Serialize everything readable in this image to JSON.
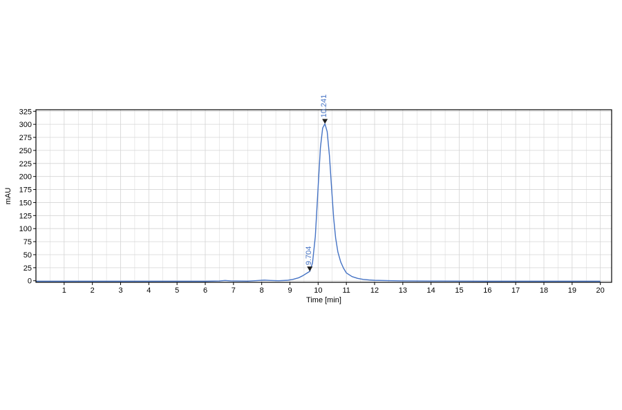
{
  "chart_data": {
    "type": "line",
    "xlabel": "Time [min]",
    "ylabel": "mAU",
    "xlim": [
      0,
      20.4
    ],
    "ylim": [
      -3,
      328
    ],
    "x_ticks": [
      1,
      2,
      3,
      4,
      5,
      6,
      7,
      8,
      9,
      10,
      11,
      12,
      13,
      14,
      15,
      16,
      17,
      18,
      19,
      20
    ],
    "y_ticks": [
      0,
      25,
      50,
      75,
      100,
      125,
      150,
      175,
      200,
      225,
      250,
      275,
      300,
      325
    ],
    "grid": true,
    "colors": {
      "trace": "#4472c4",
      "grid": "#d4d4d4",
      "axis": "#000000",
      "marker": "#1f1f1f"
    },
    "series": [
      {
        "x": [
          0.0,
          1.0,
          2.0,
          3.0,
          4.0,
          5.0,
          6.0,
          6.5,
          6.7,
          6.9,
          7.5,
          7.9,
          8.1,
          8.3,
          8.6,
          8.9,
          9.1,
          9.3,
          9.45,
          9.6,
          9.704,
          9.8,
          9.9,
          10.0,
          10.08,
          10.16,
          10.241,
          10.32,
          10.4,
          10.48,
          10.55,
          10.62,
          10.7,
          10.8,
          10.9,
          11.0,
          11.2,
          11.4,
          11.6,
          11.8,
          12.0,
          12.5,
          13.0,
          13.5,
          14.0,
          15.0,
          16.0,
          17.0,
          18.0,
          19.0,
          20.0
        ],
        "y": [
          -1,
          -1,
          -1,
          -1,
          -1,
          -1,
          -1,
          -0.5,
          0.6,
          -0.3,
          -0.8,
          0.5,
          1.2,
          0.6,
          0.0,
          0.8,
          2.5,
          5.5,
          9.5,
          14.5,
          18,
          34,
          85,
          180,
          255,
          293,
          301,
          286,
          240,
          175,
          120,
          82,
          55,
          36,
          24,
          15,
          8,
          4.5,
          2.5,
          1.5,
          0.8,
          0.2,
          -0.2,
          -0.5,
          -0.6,
          -0.8,
          -1,
          -1,
          -1,
          -1,
          -1
        ]
      }
    ],
    "annotations": [
      {
        "x": 9.704,
        "y": 18,
        "label": "9.704"
      },
      {
        "x": 10.241,
        "y": 301,
        "label": "10.241"
      }
    ]
  }
}
